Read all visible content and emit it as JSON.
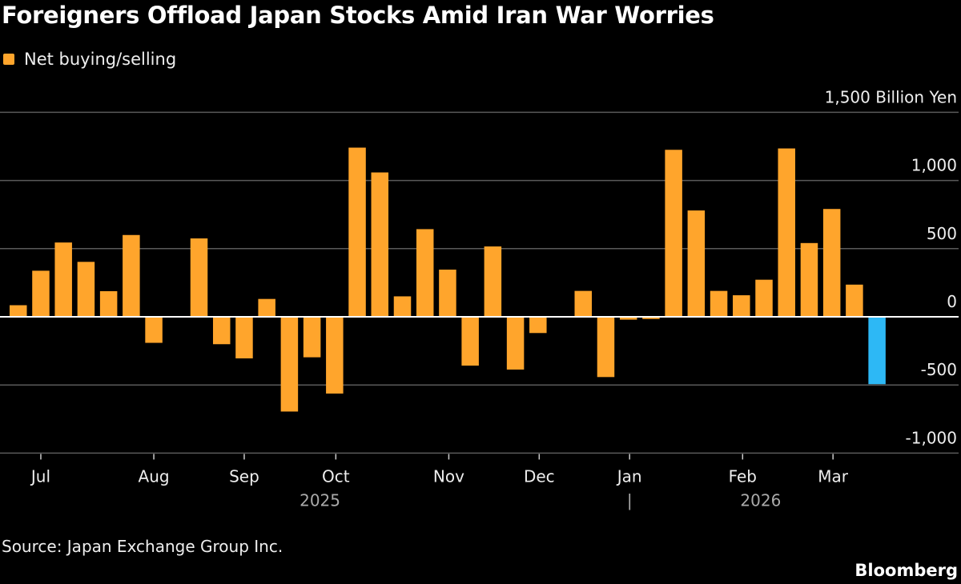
{
  "title": "Foreigners Offload Japan Stocks Amid Iran War Worries",
  "source": "Source: Japan Exchange Group Inc.",
  "brand": "Bloomberg",
  "chart_data": {
    "type": "bar",
    "title": "Foreigners Offload Japan Stocks Amid Iran War Worries",
    "legend": {
      "placement": "top-left",
      "entries": [
        {
          "name": "Net buying/selling",
          "color": "#FFA52C"
        }
      ]
    },
    "series": [
      {
        "name": "Net buying/selling",
        "values": [
          85,
          338,
          545,
          403,
          188,
          600,
          -191,
          0,
          575,
          -201,
          -305,
          131,
          -695,
          -297,
          -563,
          1241,
          1059,
          150,
          643,
          346,
          -358,
          516,
          -387,
          -119,
          0,
          190,
          -442,
          -21,
          -16,
          1225,
          780,
          190,
          158,
          272,
          1235,
          541,
          791,
          236,
          -494
        ]
      }
    ],
    "colors": {
      "positive": "#FFA52C",
      "highlight": "#2DB8F5",
      "highlight_index": 38
    },
    "ylabel": "Billion Yen",
    "unit_label": "1,500 Billion Yen",
    "ylim": [
      -1000,
      1500
    ],
    "y_ticks": [
      {
        "value": 1500,
        "label": "1,500 Billion Yen"
      },
      {
        "value": 1000,
        "label": "1,000"
      },
      {
        "value": 500,
        "label": "500"
      },
      {
        "value": 0,
        "label": "0"
      },
      {
        "value": -500,
        "label": "-500"
      },
      {
        "value": -1000,
        "label": "-1,000"
      }
    ],
    "x_ticks": [
      {
        "label": "Jul",
        "week": 1
      },
      {
        "label": "Aug",
        "week": 6
      },
      {
        "label": "Sep",
        "week": 10
      },
      {
        "label": "Oct",
        "week": 14
      },
      {
        "label": "Nov",
        "week": 19
      },
      {
        "label": "Dec",
        "week": 23
      },
      {
        "label": "Jan",
        "week": 27
      },
      {
        "label": "Feb",
        "week": 32
      },
      {
        "label": "Mar",
        "week": 36
      }
    ],
    "year_labels": [
      {
        "label": "2025",
        "week": 13.3
      },
      {
        "label": "|",
        "week": 27
      },
      {
        "label": "2026",
        "week": 32.8
      }
    ],
    "grid": true
  }
}
